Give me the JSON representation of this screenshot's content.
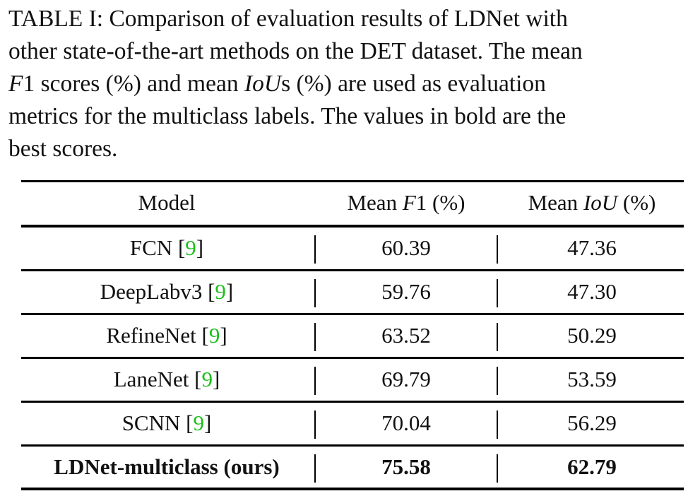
{
  "caption": {
    "line1": "TABLE I: Comparison of evaluation results of LDNet with",
    "line2": "other state-of-the-art methods on the DET dataset. The mean",
    "line3_var": "F",
    "line3_num": "1",
    "line3_a": " scores (%) and mean ",
    "line3_iou": "IoU",
    "line3_b": "s (%) are used as evaluation",
    "line4": "metrics for the multiclass labels. The values in bold are the",
    "line5": "best scores."
  },
  "table": {
    "headers": {
      "model": "Model",
      "f1_prefix": "Mean ",
      "f1_var": "F",
      "f1_num": "1",
      "f1_suffix": " (%)",
      "iou_prefix": "Mean ",
      "iou_var": "IoU",
      "iou_suffix": " (%)"
    },
    "rows": [
      {
        "model": "FCN",
        "ref": "9",
        "f1": "60.39",
        "iou": "47.36"
      },
      {
        "model": "DeepLabv3",
        "ref": "9",
        "f1": "59.76",
        "iou": "47.30"
      },
      {
        "model": "RefineNet",
        "ref": "9",
        "f1": "63.52",
        "iou": "50.29"
      },
      {
        "model": "LaneNet",
        "ref": "9",
        "f1": "69.79",
        "iou": "53.59"
      },
      {
        "model": "SCNN",
        "ref": "9",
        "f1": "70.04",
        "iou": "56.29"
      },
      {
        "model": "LDNet-multiclass (ours)",
        "f1": "75.58",
        "iou": "62.79"
      }
    ]
  },
  "colors": {
    "ref": "#1dbf1d",
    "text": "#111111"
  }
}
